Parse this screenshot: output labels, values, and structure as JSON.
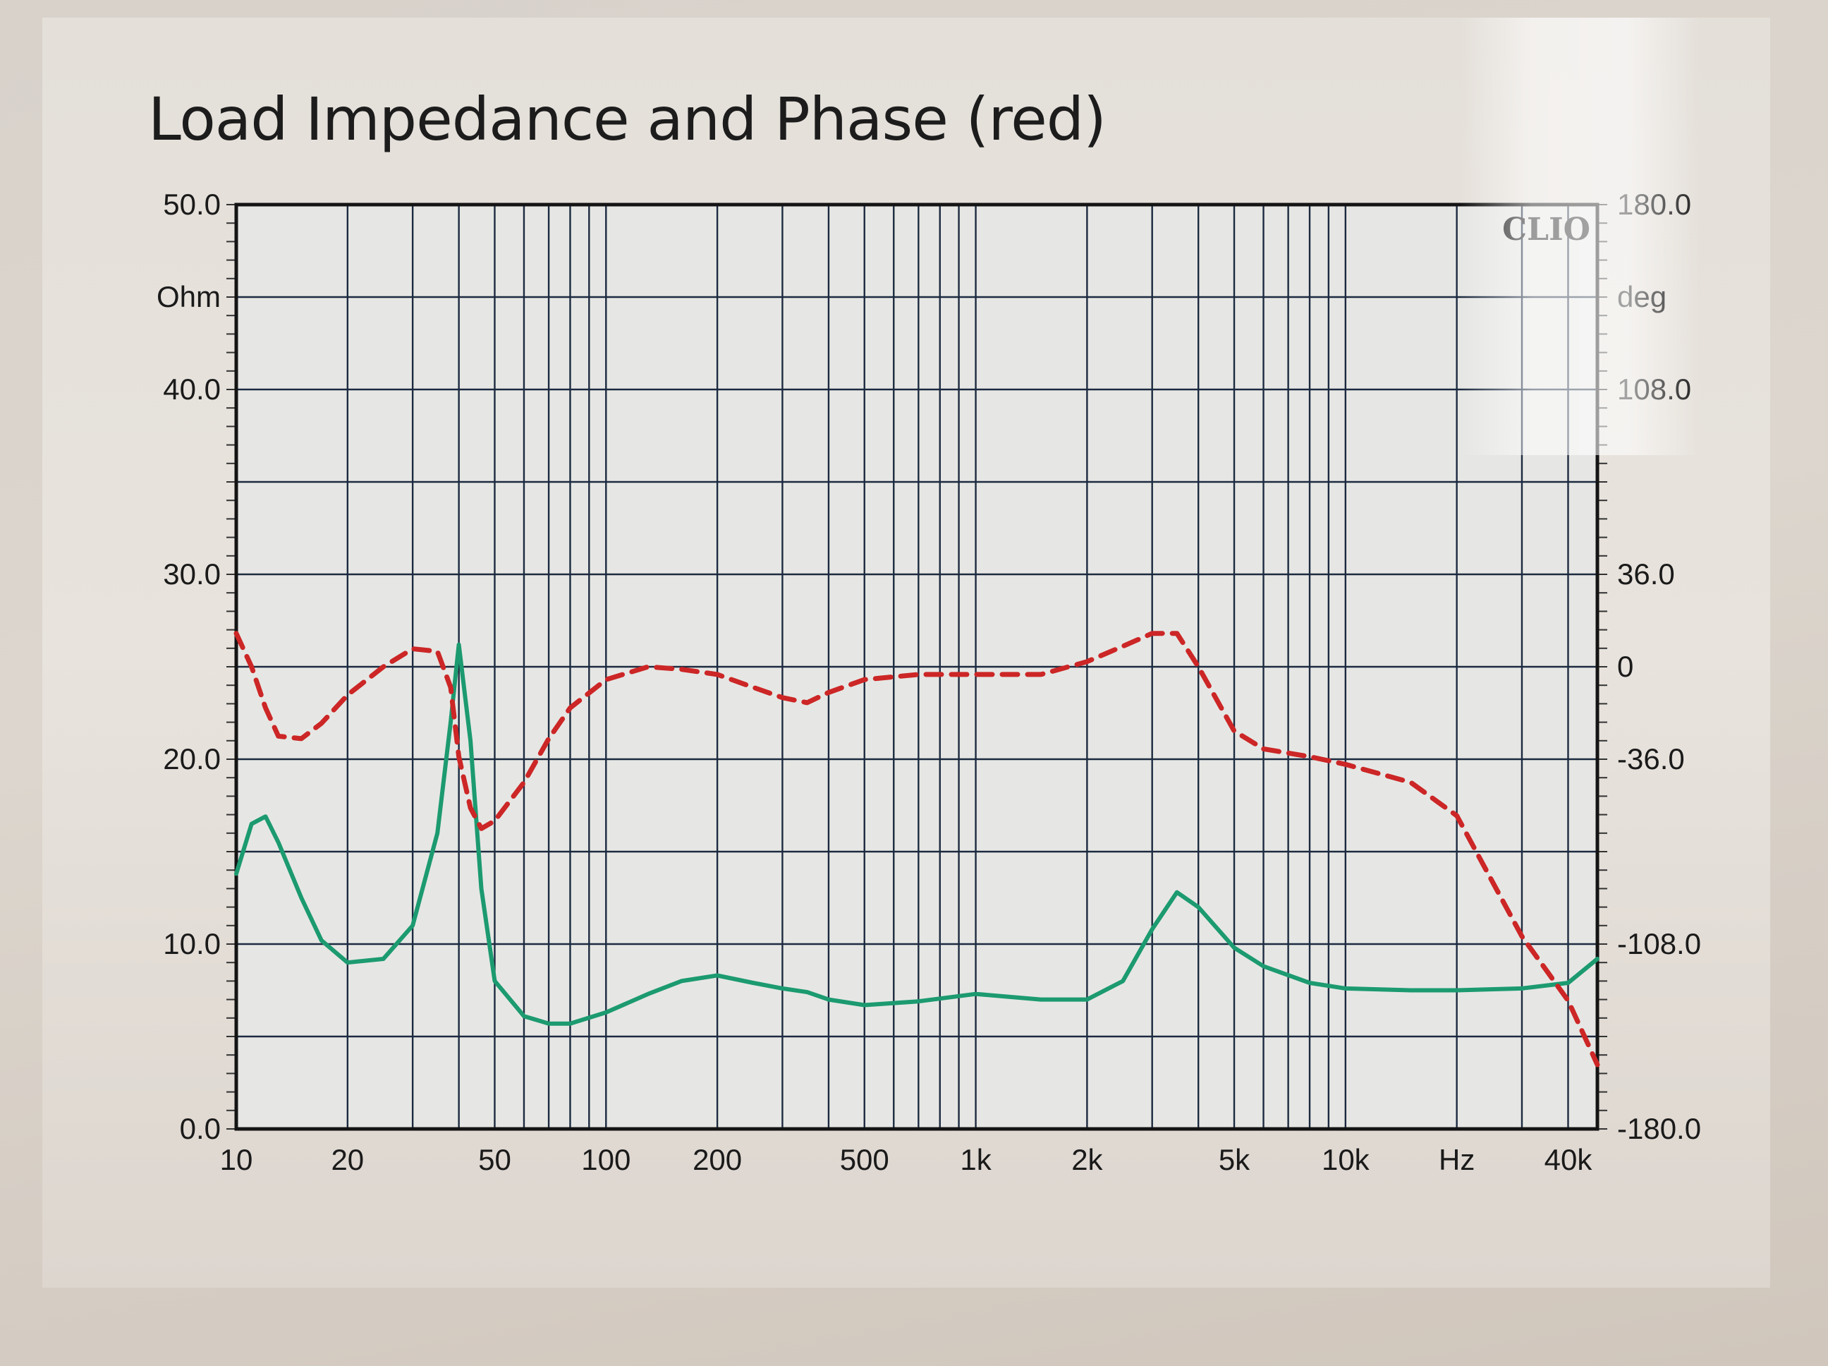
{
  "chart_data": {
    "type": "line",
    "title": "Load Impedance and Phase (red)",
    "brand": "CLIO",
    "x_scale": "log",
    "x_unit_label": "Hz",
    "xlim": [
      10,
      48000
    ],
    "x_ticks": [
      {
        "value": 10,
        "label": "10"
      },
      {
        "value": 20,
        "label": "20"
      },
      {
        "value": 50,
        "label": "50"
      },
      {
        "value": 100,
        "label": "100"
      },
      {
        "value": 200,
        "label": "200"
      },
      {
        "value": 500,
        "label": "500"
      },
      {
        "value": 1000,
        "label": "1k"
      },
      {
        "value": 2000,
        "label": "2k"
      },
      {
        "value": 5000,
        "label": "5k"
      },
      {
        "value": 10000,
        "label": "10k"
      },
      {
        "value": 20000,
        "label": "Hz"
      },
      {
        "value": 40000,
        "label": "40k"
      }
    ],
    "y_left": {
      "unit": "Ohm",
      "range": [
        0,
        50
      ],
      "ticks": [
        {
          "value": 0,
          "label": "0.0"
        },
        {
          "value": 10,
          "label": "10.0"
        },
        {
          "value": 20,
          "label": "20.0"
        },
        {
          "value": 30,
          "label": "30.0"
        },
        {
          "value": 40,
          "label": "40.0"
        },
        {
          "value": 50,
          "label": "50.0"
        }
      ]
    },
    "y_right": {
      "unit": "deg",
      "range": [
        -180,
        180
      ],
      "ticks": [
        {
          "value": 180,
          "label": "180.0"
        },
        {
          "value": 108,
          "label": "108.0"
        },
        {
          "value": 36,
          "label": "36.0"
        },
        {
          "value": 0,
          "label": "0"
        },
        {
          "value": -36,
          "label": "-36.0"
        },
        {
          "value": -108,
          "label": "-108.0"
        },
        {
          "value": -180,
          "label": "-180.0"
        }
      ]
    },
    "grid": true,
    "colors": {
      "impedance": "#1c9a70",
      "phase": "#cc2626",
      "grid": "#1c2a40",
      "plot_bg": "#e6e7e4"
    },
    "series": [
      {
        "axis": "left",
        "style": "solid",
        "x": [
          10,
          11,
          12,
          13,
          15,
          17,
          20,
          25,
          30,
          35,
          38,
          40,
          43,
          46,
          50,
          60,
          70,
          80,
          100,
          130,
          160,
          200,
          250,
          300,
          350,
          400,
          500,
          700,
          1000,
          1500,
          2000,
          2500,
          3000,
          3500,
          4000,
          5000,
          6000,
          8000,
          10000,
          15000,
          20000,
          30000,
          40000,
          48000
        ],
        "values": [
          13.8,
          16.5,
          16.9,
          15.5,
          12.5,
          10.2,
          9.0,
          9.2,
          11.0,
          16.0,
          22.0,
          26.2,
          21.0,
          13.0,
          8.0,
          6.1,
          5.7,
          5.7,
          6.3,
          7.3,
          8.0,
          8.3,
          7.9,
          7.6,
          7.4,
          7.0,
          6.7,
          6.9,
          7.3,
          7.0,
          7.0,
          8.0,
          10.8,
          12.8,
          12.0,
          9.8,
          8.8,
          7.9,
          7.6,
          7.5,
          7.5,
          7.6,
          7.9,
          9.2
        ]
      },
      {
        "axis": "right",
        "style": "dashed",
        "x": [
          10,
          11,
          12,
          13,
          15,
          17,
          20,
          25,
          30,
          35,
          38,
          40,
          43,
          46,
          50,
          60,
          70,
          80,
          100,
          130,
          160,
          200,
          250,
          300,
          350,
          400,
          500,
          700,
          1000,
          1500,
          2000,
          2500,
          3000,
          3500,
          4000,
          5000,
          6000,
          8000,
          10000,
          15000,
          20000,
          30000,
          40000,
          48000
        ],
        "values": [
          13,
          0,
          -16,
          -27,
          -28,
          -22,
          -11,
          0,
          7,
          6,
          -8,
          -35,
          -55,
          -63,
          -60,
          -45,
          -28,
          -16,
          -5,
          0,
          -1,
          -3,
          -8,
          -12,
          -14,
          -10,
          -5,
          -3,
          -3,
          -3,
          2,
          8,
          13,
          13,
          0,
          -25,
          -32,
          -35,
          -38,
          -45,
          -58,
          -105,
          -130,
          -155
        ]
      }
    ]
  }
}
